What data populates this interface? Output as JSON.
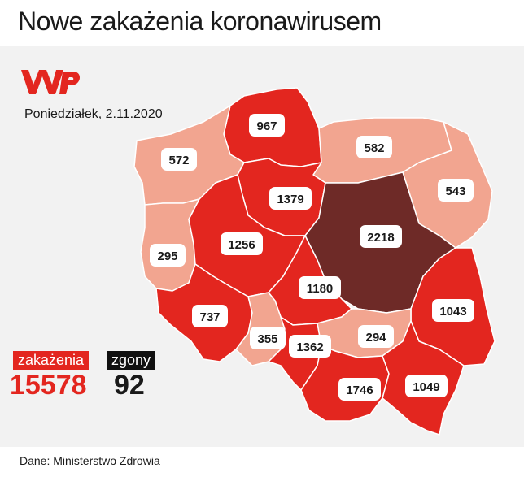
{
  "title": "Nowe zakażenia koronawirusem",
  "date": "Poniedziałek, 2.11.2020",
  "colors": {
    "high": "#e3261f",
    "low": "#f2a590",
    "max": "#6e2a27",
    "border": "#ffffff"
  },
  "regions": [
    {
      "id": "pomorskie",
      "value": "967",
      "level": "high"
    },
    {
      "id": "zachodniopomorskie",
      "value": "572",
      "level": "low"
    },
    {
      "id": "warminsko-mazurskie",
      "value": "582",
      "level": "low"
    },
    {
      "id": "podlaskie",
      "value": "543",
      "level": "low"
    },
    {
      "id": "kujawsko-pomorskie",
      "value": "1379",
      "level": "high"
    },
    {
      "id": "mazowieckie",
      "value": "2218",
      "level": "max"
    },
    {
      "id": "lubuskie",
      "value": "295",
      "level": "low"
    },
    {
      "id": "wielkopolskie",
      "value": "1256",
      "level": "high"
    },
    {
      "id": "lodzkie",
      "value": "1180",
      "level": "high"
    },
    {
      "id": "lubelskie",
      "value": "1043",
      "level": "high"
    },
    {
      "id": "dolnoslaskie",
      "value": "737",
      "level": "high"
    },
    {
      "id": "opolskie",
      "value": "355",
      "level": "low"
    },
    {
      "id": "slaskie",
      "value": "1362",
      "level": "high"
    },
    {
      "id": "swietokrzyskie",
      "value": "294",
      "level": "low"
    },
    {
      "id": "malopolskie",
      "value": "1746",
      "level": "high"
    },
    {
      "id": "podkarpackie",
      "value": "1049",
      "level": "high"
    }
  ],
  "stats": {
    "infections_label": "zakażenia",
    "infections_value": "15578",
    "deaths_label": "zgony",
    "deaths_value": "92"
  },
  "source": "Dane: Ministerstwo Zdrowia"
}
